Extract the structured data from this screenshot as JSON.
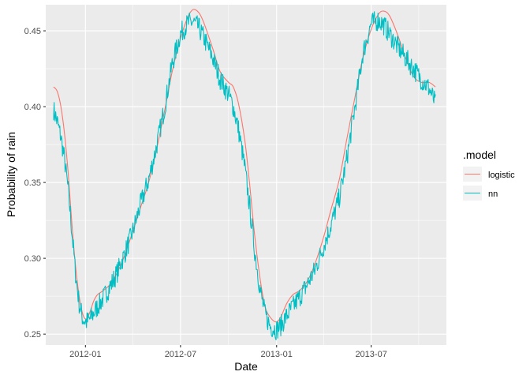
{
  "chart_data": {
    "type": "line",
    "xlabel": "Date",
    "ylabel": "Probability of rain",
    "xlim": [
      "2011-10-17",
      "2013-11-22"
    ],
    "ylim": [
      0.2428,
      0.4672
    ],
    "x_ticks": [
      "2012-01-01",
      "2012-07-01",
      "2013-01-01",
      "2013-07-01"
    ],
    "x_tick_labels": [
      "2012-01",
      "2012-07",
      "2013-01",
      "2013-07"
    ],
    "y_ticks": [
      0.25,
      0.3,
      0.35,
      0.4,
      0.45
    ],
    "y_tick_labels": [
      "0.25",
      "0.30",
      "0.35",
      "0.40",
      "0.45"
    ],
    "legend": {
      "title": ".model",
      "position": "right"
    },
    "grid": true,
    "series": [
      {
        "name": "logistic",
        "color": "#F8766D",
        "points": [
          [
            "2011-11-01",
            0.413
          ],
          [
            "2011-11-08",
            0.41
          ],
          [
            "2011-11-15",
            0.4
          ],
          [
            "2011-11-22",
            0.382
          ],
          [
            "2011-11-29",
            0.356
          ],
          [
            "2011-12-06",
            0.323
          ],
          [
            "2011-12-13",
            0.295
          ],
          [
            "2011-12-20",
            0.275
          ],
          [
            "2011-12-27",
            0.263
          ],
          [
            "2012-01-03",
            0.26
          ],
          [
            "2012-01-10",
            0.265
          ],
          [
            "2012-01-17",
            0.272
          ],
          [
            "2012-01-24",
            0.276
          ],
          [
            "2012-02-01",
            0.278
          ],
          [
            "2012-02-15",
            0.282
          ],
          [
            "2012-03-01",
            0.29
          ],
          [
            "2012-03-15",
            0.301
          ],
          [
            "2012-04-01",
            0.318
          ],
          [
            "2012-04-15",
            0.333
          ],
          [
            "2012-05-01",
            0.35
          ],
          [
            "2012-05-15",
            0.37
          ],
          [
            "2012-06-01",
            0.398
          ],
          [
            "2012-06-15",
            0.423
          ],
          [
            "2012-07-01",
            0.445
          ],
          [
            "2012-07-15",
            0.459
          ],
          [
            "2012-07-25",
            0.464
          ],
          [
            "2012-08-05",
            0.462
          ],
          [
            "2012-08-15",
            0.455
          ],
          [
            "2012-09-01",
            0.438
          ],
          [
            "2012-09-15",
            0.423
          ],
          [
            "2012-10-01",
            0.416
          ],
          [
            "2012-10-10",
            0.413
          ],
          [
            "2012-10-20",
            0.402
          ],
          [
            "2012-11-01",
            0.378
          ],
          [
            "2012-11-10",
            0.35
          ],
          [
            "2012-11-20",
            0.315
          ],
          [
            "2012-12-01",
            0.285
          ],
          [
            "2012-12-10",
            0.268
          ],
          [
            "2012-12-20",
            0.261
          ],
          [
            "2013-01-01",
            0.258
          ],
          [
            "2013-01-10",
            0.262
          ],
          [
            "2013-01-20",
            0.27
          ],
          [
            "2013-02-01",
            0.276
          ],
          [
            "2013-02-15",
            0.279
          ],
          [
            "2013-03-01",
            0.285
          ],
          [
            "2013-03-15",
            0.296
          ],
          [
            "2013-04-01",
            0.314
          ],
          [
            "2013-04-15",
            0.332
          ],
          [
            "2013-05-01",
            0.352
          ],
          [
            "2013-05-15",
            0.378
          ],
          [
            "2013-06-01",
            0.408
          ],
          [
            "2013-06-15",
            0.432
          ],
          [
            "2013-07-01",
            0.451
          ],
          [
            "2013-07-15",
            0.461
          ],
          [
            "2013-07-25",
            0.463
          ],
          [
            "2013-08-05",
            0.46
          ],
          [
            "2013-08-20",
            0.448
          ],
          [
            "2013-09-05",
            0.432
          ],
          [
            "2013-09-20",
            0.42
          ],
          [
            "2013-10-05",
            0.416
          ],
          [
            "2013-10-20",
            0.416
          ],
          [
            "2013-11-01",
            0.413
          ]
        ]
      },
      {
        "name": "nn",
        "color": "#00BFC4",
        "noise": 0.007,
        "points": [
          [
            "2011-11-01",
            0.398
          ],
          [
            "2011-11-08",
            0.39
          ],
          [
            "2011-11-15",
            0.38
          ],
          [
            "2011-11-22",
            0.365
          ],
          [
            "2011-11-29",
            0.345
          ],
          [
            "2011-12-06",
            0.318
          ],
          [
            "2011-12-13",
            0.29
          ],
          [
            "2011-12-20",
            0.27
          ],
          [
            "2011-12-27",
            0.26
          ],
          [
            "2012-01-03",
            0.258
          ],
          [
            "2012-01-10",
            0.26
          ],
          [
            "2012-01-17",
            0.264
          ],
          [
            "2012-01-24",
            0.268
          ],
          [
            "2012-02-01",
            0.272
          ],
          [
            "2012-02-15",
            0.28
          ],
          [
            "2012-03-01",
            0.29
          ],
          [
            "2012-03-15",
            0.302
          ],
          [
            "2012-04-01",
            0.318
          ],
          [
            "2012-04-15",
            0.335
          ],
          [
            "2012-05-01",
            0.352
          ],
          [
            "2012-05-15",
            0.372
          ],
          [
            "2012-06-01",
            0.4
          ],
          [
            "2012-06-15",
            0.428
          ],
          [
            "2012-07-01",
            0.448
          ],
          [
            "2012-07-15",
            0.455
          ],
          [
            "2012-07-25",
            0.456
          ],
          [
            "2012-08-05",
            0.452
          ],
          [
            "2012-08-15",
            0.445
          ],
          [
            "2012-09-01",
            0.432
          ],
          [
            "2012-09-15",
            0.418
          ],
          [
            "2012-10-01",
            0.408
          ],
          [
            "2012-10-10",
            0.4
          ],
          [
            "2012-10-20",
            0.385
          ],
          [
            "2012-11-01",
            0.36
          ],
          [
            "2012-11-10",
            0.335
          ],
          [
            "2012-11-20",
            0.305
          ],
          [
            "2012-12-01",
            0.278
          ],
          [
            "2012-12-10",
            0.263
          ],
          [
            "2012-12-20",
            0.255
          ],
          [
            "2013-01-01",
            0.253
          ],
          [
            "2013-01-10",
            0.256
          ],
          [
            "2013-01-20",
            0.262
          ],
          [
            "2013-02-01",
            0.268
          ],
          [
            "2013-02-15",
            0.275
          ],
          [
            "2013-03-01",
            0.283
          ],
          [
            "2013-03-15",
            0.292
          ],
          [
            "2013-04-01",
            0.308
          ],
          [
            "2013-04-15",
            0.322
          ],
          [
            "2013-05-01",
            0.34
          ],
          [
            "2013-05-15",
            0.365
          ],
          [
            "2013-06-01",
            0.402
          ],
          [
            "2013-06-15",
            0.435
          ],
          [
            "2013-07-01",
            0.455
          ],
          [
            "2013-07-15",
            0.457
          ],
          [
            "2013-07-25",
            0.454
          ],
          [
            "2013-08-05",
            0.448
          ],
          [
            "2013-08-20",
            0.44
          ],
          [
            "2013-09-05",
            0.432
          ],
          [
            "2013-09-20",
            0.425
          ],
          [
            "2013-10-05",
            0.418
          ],
          [
            "2013-10-20",
            0.412
          ],
          [
            "2013-11-01",
            0.402
          ]
        ]
      }
    ]
  }
}
